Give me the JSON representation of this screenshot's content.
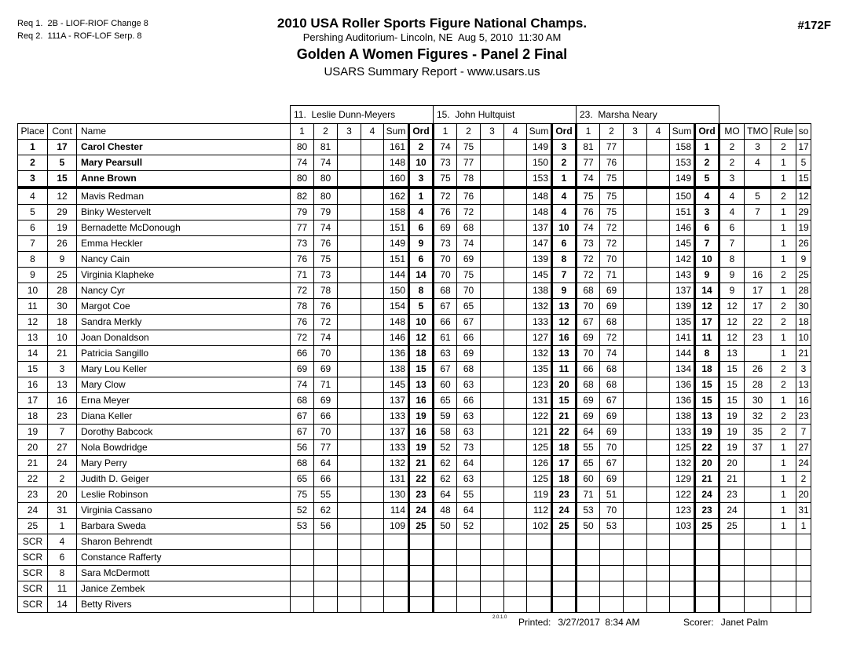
{
  "header": {
    "req_line_1": "Req 1.  2B - LIOF-RIOF Change 8",
    "req_line_2": "Req 2.  111A - ROF-LOF Serp. 8",
    "title": "2010 USA Roller Sports Figure National Champs.",
    "venue_line": "Pershing Auditorium- Lincoln, NE  Aug 5, 2010  11:30 AM",
    "event_title": "Golden A Women Figures - Panel 2 Final",
    "report_type": "USARS Summary Report - www.usars.us",
    "event_number": "#172F"
  },
  "table": {
    "judges": [
      "11.  Leslie Dunn-Meyers",
      "15.  John Hultquist",
      "23.  Marsha Neary"
    ],
    "headers": {
      "place": "Place",
      "cont": "Cont",
      "name": "Name",
      "judge_cols": [
        "1",
        "2",
        "3",
        "4",
        "Sum",
        "Ord"
      ],
      "summary_cols": [
        "MO",
        "TMO",
        "Rule",
        "so"
      ]
    },
    "rows": [
      {
        "place": "1",
        "cont": "17",
        "name": "Carol Chester",
        "bold": true,
        "sep": false,
        "cells": [
          "80",
          "81",
          "",
          "",
          "161",
          "2",
          "74",
          "75",
          "",
          "",
          "149",
          "3",
          "81",
          "77",
          "",
          "",
          "158",
          "1",
          "2",
          "3",
          "2",
          "17"
        ]
      },
      {
        "place": "2",
        "cont": "5",
        "name": "Mary Pearsull",
        "bold": true,
        "sep": false,
        "cells": [
          "74",
          "74",
          "",
          "",
          "148",
          "10",
          "73",
          "77",
          "",
          "",
          "150",
          "2",
          "77",
          "76",
          "",
          "",
          "153",
          "2",
          "2",
          "4",
          "1",
          "5"
        ]
      },
      {
        "place": "3",
        "cont": "15",
        "name": "Anne Brown",
        "bold": true,
        "sep": true,
        "cells": [
          "80",
          "80",
          "",
          "",
          "160",
          "3",
          "75",
          "78",
          "",
          "",
          "153",
          "1",
          "74",
          "75",
          "",
          "",
          "149",
          "5",
          "3",
          "",
          "1",
          "15"
        ]
      },
      {
        "place": "4",
        "cont": "12",
        "name": "Mavis Redman",
        "bold": false,
        "sep": false,
        "cells": [
          "82",
          "80",
          "",
          "",
          "162",
          "1",
          "72",
          "76",
          "",
          "",
          "148",
          "4",
          "75",
          "75",
          "",
          "",
          "150",
          "4",
          "4",
          "5",
          "2",
          "12"
        ]
      },
      {
        "place": "5",
        "cont": "29",
        "name": "Binky Westervelt",
        "bold": false,
        "sep": false,
        "cells": [
          "79",
          "79",
          "",
          "",
          "158",
          "4",
          "76",
          "72",
          "",
          "",
          "148",
          "4",
          "76",
          "75",
          "",
          "",
          "151",
          "3",
          "4",
          "7",
          "1",
          "29"
        ]
      },
      {
        "place": "6",
        "cont": "19",
        "name": "Bernadette McDonough",
        "bold": false,
        "sep": false,
        "cells": [
          "77",
          "74",
          "",
          "",
          "151",
          "6",
          "69",
          "68",
          "",
          "",
          "137",
          "10",
          "74",
          "72",
          "",
          "",
          "146",
          "6",
          "6",
          "",
          "1",
          "19"
        ]
      },
      {
        "place": "7",
        "cont": "26",
        "name": "Emma Heckler",
        "bold": false,
        "sep": false,
        "cells": [
          "73",
          "76",
          "",
          "",
          "149",
          "9",
          "73",
          "74",
          "",
          "",
          "147",
          "6",
          "73",
          "72",
          "",
          "",
          "145",
          "7",
          "7",
          "",
          "1",
          "26"
        ]
      },
      {
        "place": "8",
        "cont": "9",
        "name": "Nancy Cain",
        "bold": false,
        "sep": false,
        "cells": [
          "76",
          "75",
          "",
          "",
          "151",
          "6",
          "70",
          "69",
          "",
          "",
          "139",
          "8",
          "72",
          "70",
          "",
          "",
          "142",
          "10",
          "8",
          "",
          "1",
          "9"
        ]
      },
      {
        "place": "9",
        "cont": "25",
        "name": "Virginia Klapheke",
        "bold": false,
        "sep": false,
        "cells": [
          "71",
          "73",
          "",
          "",
          "144",
          "14",
          "70",
          "75",
          "",
          "",
          "145",
          "7",
          "72",
          "71",
          "",
          "",
          "143",
          "9",
          "9",
          "16",
          "2",
          "25"
        ]
      },
      {
        "place": "10",
        "cont": "28",
        "name": "Nancy Cyr",
        "bold": false,
        "sep": false,
        "cells": [
          "72",
          "78",
          "",
          "",
          "150",
          "8",
          "68",
          "70",
          "",
          "",
          "138",
          "9",
          "68",
          "69",
          "",
          "",
          "137",
          "14",
          "9",
          "17",
          "1",
          "28"
        ]
      },
      {
        "place": "11",
        "cont": "30",
        "name": "Margot Coe",
        "bold": false,
        "sep": false,
        "cells": [
          "78",
          "76",
          "",
          "",
          "154",
          "5",
          "67",
          "65",
          "",
          "",
          "132",
          "13",
          "70",
          "69",
          "",
          "",
          "139",
          "12",
          "12",
          "17",
          "2",
          "30"
        ]
      },
      {
        "place": "12",
        "cont": "18",
        "name": "Sandra Merkly",
        "bold": false,
        "sep": false,
        "cells": [
          "76",
          "72",
          "",
          "",
          "148",
          "10",
          "66",
          "67",
          "",
          "",
          "133",
          "12",
          "67",
          "68",
          "",
          "",
          "135",
          "17",
          "12",
          "22",
          "2",
          "18"
        ]
      },
      {
        "place": "13",
        "cont": "10",
        "name": "Joan Donaldson",
        "bold": false,
        "sep": false,
        "cells": [
          "72",
          "74",
          "",
          "",
          "146",
          "12",
          "61",
          "66",
          "",
          "",
          "127",
          "16",
          "69",
          "72",
          "",
          "",
          "141",
          "11",
          "12",
          "23",
          "1",
          "10"
        ]
      },
      {
        "place": "14",
        "cont": "21",
        "name": "Patricia Sangillo",
        "bold": false,
        "sep": false,
        "cells": [
          "66",
          "70",
          "",
          "",
          "136",
          "18",
          "63",
          "69",
          "",
          "",
          "132",
          "13",
          "70",
          "74",
          "",
          "",
          "144",
          "8",
          "13",
          "",
          "1",
          "21"
        ]
      },
      {
        "place": "15",
        "cont": "3",
        "name": "Mary Lou Keller",
        "bold": false,
        "sep": false,
        "cells": [
          "69",
          "69",
          "",
          "",
          "138",
          "15",
          "67",
          "68",
          "",
          "",
          "135",
          "11",
          "66",
          "68",
          "",
          "",
          "134",
          "18",
          "15",
          "26",
          "2",
          "3"
        ]
      },
      {
        "place": "16",
        "cont": "13",
        "name": "Mary Clow",
        "bold": false,
        "sep": false,
        "cells": [
          "74",
          "71",
          "",
          "",
          "145",
          "13",
          "60",
          "63",
          "",
          "",
          "123",
          "20",
          "68",
          "68",
          "",
          "",
          "136",
          "15",
          "15",
          "28",
          "2",
          "13"
        ]
      },
      {
        "place": "17",
        "cont": "16",
        "name": "Erna Meyer",
        "bold": false,
        "sep": false,
        "cells": [
          "68",
          "69",
          "",
          "",
          "137",
          "16",
          "65",
          "66",
          "",
          "",
          "131",
          "15",
          "69",
          "67",
          "",
          "",
          "136",
          "15",
          "15",
          "30",
          "1",
          "16"
        ]
      },
      {
        "place": "18",
        "cont": "23",
        "name": "Diana Keller",
        "bold": false,
        "sep": false,
        "cells": [
          "67",
          "66",
          "",
          "",
          "133",
          "19",
          "59",
          "63",
          "",
          "",
          "122",
          "21",
          "69",
          "69",
          "",
          "",
          "138",
          "13",
          "19",
          "32",
          "2",
          "23"
        ]
      },
      {
        "place": "19",
        "cont": "7",
        "name": "Dorothy Babcock",
        "bold": false,
        "sep": false,
        "cells": [
          "67",
          "70",
          "",
          "",
          "137",
          "16",
          "58",
          "63",
          "",
          "",
          "121",
          "22",
          "64",
          "69",
          "",
          "",
          "133",
          "19",
          "19",
          "35",
          "2",
          "7"
        ]
      },
      {
        "place": "20",
        "cont": "27",
        "name": "Nola Bowdridge",
        "bold": false,
        "sep": false,
        "cells": [
          "56",
          "77",
          "",
          "",
          "133",
          "19",
          "52",
          "73",
          "",
          "",
          "125",
          "18",
          "55",
          "70",
          "",
          "",
          "125",
          "22",
          "19",
          "37",
          "1",
          "27"
        ]
      },
      {
        "place": "21",
        "cont": "24",
        "name": "Mary Perry",
        "bold": false,
        "sep": false,
        "cells": [
          "68",
          "64",
          "",
          "",
          "132",
          "21",
          "62",
          "64",
          "",
          "",
          "126",
          "17",
          "65",
          "67",
          "",
          "",
          "132",
          "20",
          "20",
          "",
          "1",
          "24"
        ]
      },
      {
        "place": "22",
        "cont": "2",
        "name": "Judith D. Geiger",
        "bold": false,
        "sep": false,
        "cells": [
          "65",
          "66",
          "",
          "",
          "131",
          "22",
          "62",
          "63",
          "",
          "",
          "125",
          "18",
          "60",
          "69",
          "",
          "",
          "129",
          "21",
          "21",
          "",
          "1",
          "2"
        ]
      },
      {
        "place": "23",
        "cont": "20",
        "name": "Leslie Robinson",
        "bold": false,
        "sep": false,
        "cells": [
          "75",
          "55",
          "",
          "",
          "130",
          "23",
          "64",
          "55",
          "",
          "",
          "119",
          "23",
          "71",
          "51",
          "",
          "",
          "122",
          "24",
          "23",
          "",
          "1",
          "20"
        ]
      },
      {
        "place": "24",
        "cont": "31",
        "name": "Virginia Cassano",
        "bold": false,
        "sep": false,
        "cells": [
          "52",
          "62",
          "",
          "",
          "114",
          "24",
          "48",
          "64",
          "",
          "",
          "112",
          "24",
          "53",
          "70",
          "",
          "",
          "123",
          "23",
          "24",
          "",
          "1",
          "31"
        ]
      },
      {
        "place": "25",
        "cont": "1",
        "name": "Barbara Sweda",
        "bold": false,
        "sep": false,
        "cells": [
          "53",
          "56",
          "",
          "",
          "109",
          "25",
          "50",
          "52",
          "",
          "",
          "102",
          "25",
          "50",
          "53",
          "",
          "",
          "103",
          "25",
          "25",
          "",
          "1",
          "1"
        ]
      },
      {
        "place": "SCR",
        "cont": "4",
        "name": "Sharon Behrendt",
        "bold": false,
        "sep": false,
        "cells": [
          "",
          "",
          "",
          "",
          "",
          "",
          "",
          "",
          "",
          "",
          "",
          "",
          "",
          "",
          "",
          "",
          "",
          "",
          "",
          "",
          "",
          ""
        ]
      },
      {
        "place": "SCR",
        "cont": "6",
        "name": "Constance Rafferty",
        "bold": false,
        "sep": false,
        "cells": [
          "",
          "",
          "",
          "",
          "",
          "",
          "",
          "",
          "",
          "",
          "",
          "",
          "",
          "",
          "",
          "",
          "",
          "",
          "",
          "",
          "",
          ""
        ]
      },
      {
        "place": "SCR",
        "cont": "8",
        "name": "Sara McDermott",
        "bold": false,
        "sep": false,
        "cells": [
          "",
          "",
          "",
          "",
          "",
          "",
          "",
          "",
          "",
          "",
          "",
          "",
          "",
          "",
          "",
          "",
          "",
          "",
          "",
          "",
          "",
          ""
        ]
      },
      {
        "place": "SCR",
        "cont": "11",
        "name": "Janice Zembek",
        "bold": false,
        "sep": false,
        "cells": [
          "",
          "",
          "",
          "",
          "",
          "",
          "",
          "",
          "",
          "",
          "",
          "",
          "",
          "",
          "",
          "",
          "",
          "",
          "",
          "",
          "",
          ""
        ]
      },
      {
        "place": "SCR",
        "cont": "14",
        "name": "Betty Rivers",
        "bold": false,
        "sep": false,
        "cells": [
          "",
          "",
          "",
          "",
          "",
          "",
          "",
          "",
          "",
          "",
          "",
          "",
          "",
          "",
          "",
          "",
          "",
          "",
          "",
          "",
          "",
          ""
        ]
      }
    ]
  },
  "footer": {
    "version": "2.0.1.0",
    "printed_label": "Printed:",
    "printed_value": "3/27/2017  8:34 AM",
    "scorer_label": "Scorer:",
    "scorer_value": "Janet Palm"
  }
}
